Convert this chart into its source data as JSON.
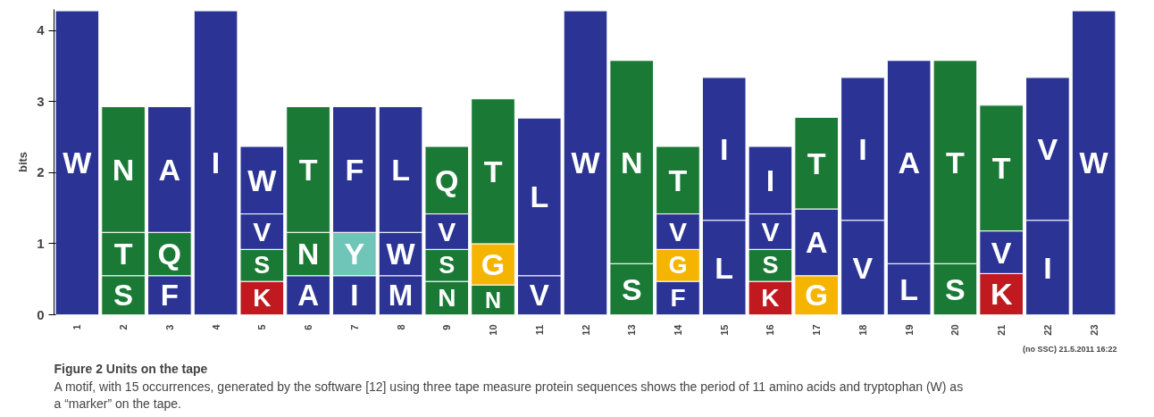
{
  "chart_data": {
    "type": "bar",
    "stacked": true,
    "title": "Figure 2 Units on the tape",
    "ylabel": "bits",
    "categories": [
      "1",
      "2",
      "3",
      "4",
      "5",
      "6",
      "7",
      "8",
      "9",
      "10",
      "11",
      "12",
      "13",
      "14",
      "15",
      "16",
      "17",
      "18",
      "19",
      "20",
      "21",
      "22",
      "23"
    ],
    "ylim": [
      0,
      4.3
    ],
    "yticks": [
      0,
      1,
      2,
      3,
      4
    ],
    "grid": false,
    "series": [
      {
        "values": [
          4.28,
          0.55,
          0.55,
          4.28,
          0.47,
          0.55,
          0.55,
          0.55,
          0.47,
          0.42,
          0.55,
          4.28,
          0.72,
          0.47,
          1.33,
          0.47,
          0.55,
          1.33,
          0.72,
          0.72,
          0.58,
          1.33,
          4.28
        ],
        "colors": [
          "#2b3494",
          "#1a7a35",
          "#2b3494",
          "#2b3494",
          "#c0191f",
          "#2b3494",
          "#2b3494",
          "#2b3494",
          "#1a7a35",
          "#1a7a35",
          "#2b3494",
          "#2b3494",
          "#1a7a35",
          "#2b3494",
          "#2b3494",
          "#c0191f",
          "#f5b400",
          "#2b3494",
          "#2b3494",
          "#1a7a35",
          "#c0191f",
          "#2b3494",
          "#2b3494"
        ],
        "value_labels": [
          "W",
          "S",
          "F",
          "I",
          "K",
          "A",
          "I",
          "M",
          "N",
          "N",
          "V",
          "W",
          "S",
          "F",
          "L",
          "K",
          "G",
          "V",
          "L",
          "S",
          "K",
          "I",
          "W"
        ]
      },
      {
        "values": [
          null,
          0.61,
          0.61,
          null,
          0.45,
          0.61,
          0.61,
          0.61,
          0.45,
          0.58,
          2.22,
          null,
          2.86,
          0.45,
          2.01,
          0.45,
          0.94,
          2.01,
          2.86,
          2.86,
          0.6,
          2.01,
          null
        ],
        "colors": [
          null,
          "#1a7a35",
          "#1a7a35",
          null,
          "#1a7a35",
          "#1a7a35",
          "#6fc5b8",
          "#2b3494",
          "#1a7a35",
          "#f5b400",
          "#2b3494",
          null,
          "#1a7a35",
          "#f5b400",
          "#2b3494",
          "#1a7a35",
          "#2b3494",
          "#2b3494",
          "#2b3494",
          "#1a7a35",
          "#2b3494",
          "#2b3494",
          null
        ],
        "value_labels": [
          null,
          "T",
          "Q",
          null,
          "S",
          "N",
          "Y",
          "W",
          "S",
          "G",
          "L",
          null,
          "N",
          "G",
          "I",
          "S",
          "A",
          "I",
          "A",
          "T",
          "V",
          "V",
          null
        ]
      },
      {
        "values": [
          null,
          1.77,
          1.77,
          null,
          0.5,
          1.77,
          1.77,
          1.77,
          0.5,
          2.04,
          null,
          null,
          null,
          0.5,
          null,
          0.5,
          1.29,
          null,
          null,
          null,
          1.77,
          null,
          null
        ],
        "colors": [
          null,
          "#1a7a35",
          "#2b3494",
          null,
          "#2b3494",
          "#1a7a35",
          "#2b3494",
          "#2b3494",
          "#2b3494",
          "#1a7a35",
          null,
          null,
          null,
          "#2b3494",
          null,
          "#2b3494",
          "#1a7a35",
          null,
          null,
          null,
          "#1a7a35",
          null,
          null
        ],
        "value_labels": [
          null,
          "N",
          "A",
          null,
          "V",
          "T",
          "F",
          "L",
          "V",
          "T",
          null,
          null,
          null,
          "V",
          null,
          "V",
          "T",
          null,
          null,
          null,
          "T",
          null,
          null
        ]
      },
      {
        "values": [
          null,
          null,
          null,
          null,
          0.95,
          null,
          null,
          null,
          0.95,
          null,
          null,
          null,
          null,
          0.95,
          null,
          0.95,
          null,
          null,
          null,
          null,
          null,
          null,
          null
        ],
        "colors": [
          null,
          null,
          null,
          null,
          "#2b3494",
          null,
          null,
          null,
          "#1a7a35",
          null,
          null,
          null,
          null,
          "#1a7a35",
          null,
          "#2b3494",
          null,
          null,
          null,
          null,
          null,
          null,
          null
        ],
        "value_labels": [
          null,
          null,
          null,
          null,
          "W",
          null,
          null,
          null,
          "Q",
          null,
          null,
          null,
          null,
          "T",
          null,
          "I",
          null,
          null,
          null,
          null,
          null,
          null,
          null
        ]
      }
    ],
    "annotations": [
      "(no SSC) 21.5.2011 16:22",
      "A motif, with 15 occurrences, generated by the software [12] using three tape measure protein sequences shows the period of 11 amino acids and tryptophan (W) as a “marker” on the tape."
    ]
  }
}
